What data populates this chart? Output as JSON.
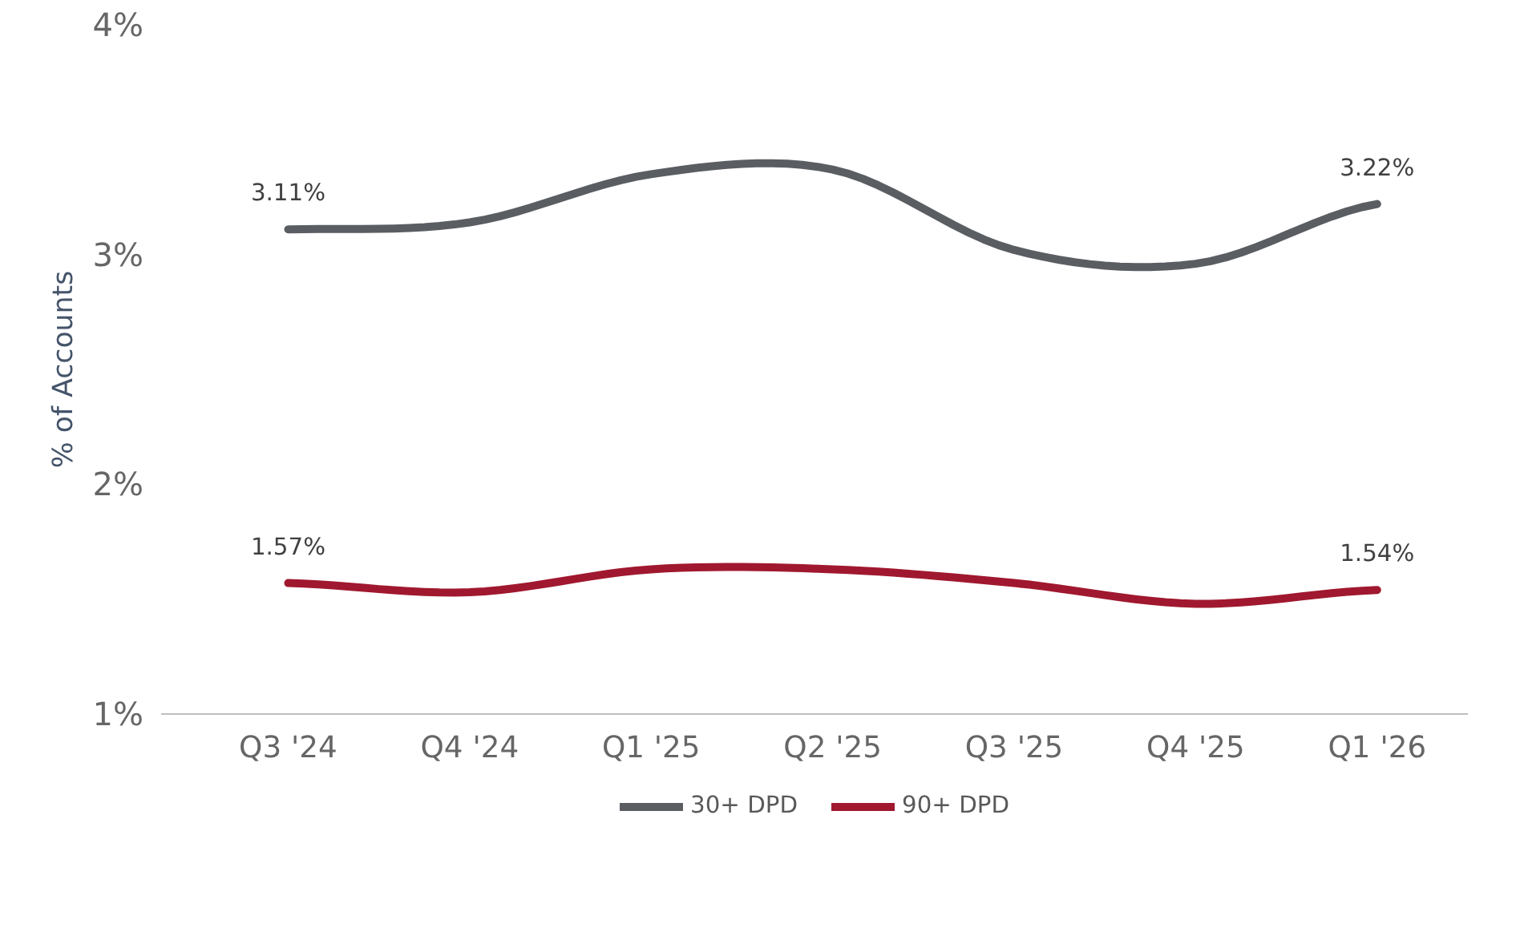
{
  "chart_data": {
    "type": "line",
    "ylabel": "% of Accounts",
    "categories": [
      "Q3 '24",
      "Q4 '24",
      "Q1 '25",
      "Q2 '25",
      "Q3 '25",
      "Q4 '25",
      "Q1 '26"
    ],
    "series": [
      {
        "name": "30+ DPD",
        "color": "#5a5d62",
        "values": [
          3.11,
          3.14,
          3.35,
          3.37,
          3.02,
          2.96,
          3.22
        ],
        "value_labels": [
          "3.11%",
          null,
          null,
          null,
          null,
          null,
          "3.22%"
        ]
      },
      {
        "name": "90+ DPD",
        "color": "#a0182f",
        "values": [
          1.57,
          1.53,
          1.63,
          1.63,
          1.57,
          1.48,
          1.54
        ],
        "value_labels": [
          "1.57%",
          null,
          null,
          null,
          null,
          null,
          "1.54%"
        ]
      }
    ],
    "ylim": [
      1,
      4
    ],
    "yticks": [
      {
        "value": 1,
        "label": "1%"
      },
      {
        "value": 2,
        "label": "2%"
      },
      {
        "value": 3,
        "label": "3%"
      },
      {
        "value": 4,
        "label": "4%"
      }
    ],
    "grid": false,
    "legend": "bottom",
    "marker": "none",
    "line_style": "solid"
  }
}
